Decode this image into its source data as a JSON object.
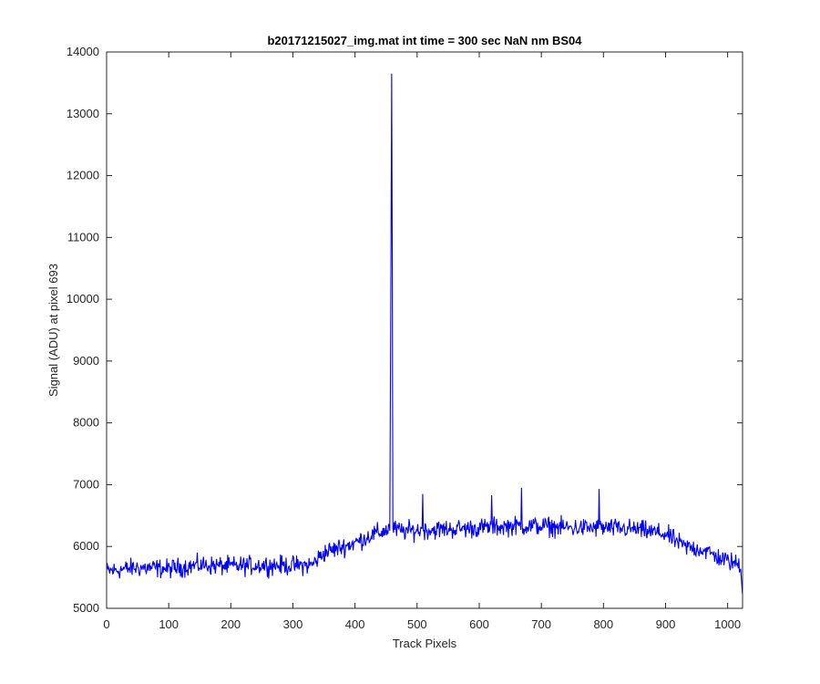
{
  "chart_data": {
    "type": "line",
    "title": "b20171215027_img.mat int time = 300 sec  NaN nm BS04",
    "xlabel": "Track Pixels",
    "ylabel": "Signal (ADU) at pixel 693",
    "xlim": [
      0,
      1024
    ],
    "ylim": [
      5000,
      14000
    ],
    "xticks": [
      0,
      100,
      200,
      300,
      400,
      500,
      600,
      700,
      800,
      900,
      1000
    ],
    "yticks": [
      5000,
      6000,
      7000,
      8000,
      9000,
      10000,
      11000,
      12000,
      13000,
      14000
    ],
    "grid": false,
    "series": [
      {
        "color": "#0000ff",
        "x": [
          0,
          50,
          100,
          150,
          200,
          250,
          300,
          330,
          350,
          375,
          400,
          425,
          450,
          456,
          458,
          459,
          460,
          461,
          463,
          475,
          500,
          550,
          600,
          650,
          700,
          750,
          800,
          850,
          900,
          930,
          960,
          990,
          1020,
          1024
        ],
        "y": [
          5600,
          5660,
          5640,
          5700,
          5680,
          5700,
          5690,
          5700,
          5900,
          5980,
          6060,
          6180,
          6260,
          6300,
          11000,
          13650,
          10500,
          6300,
          6280,
          6250,
          6260,
          6280,
          6300,
          6330,
          6330,
          6300,
          6300,
          6280,
          6200,
          6000,
          5950,
          5800,
          5700,
          5220
        ],
        "noise_amplitude": 230
      }
    ]
  }
}
